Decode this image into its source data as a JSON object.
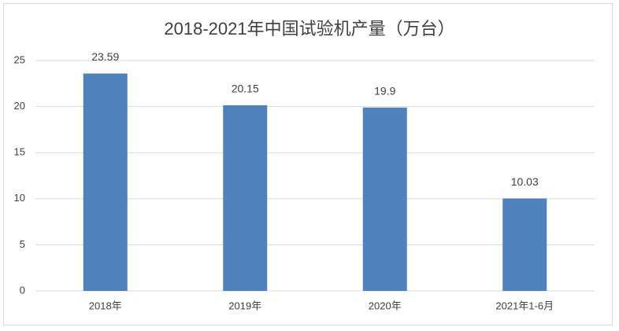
{
  "chart_data": {
    "type": "bar",
    "title": "2018-2021年中国试验机产量（万台）",
    "categories": [
      "2018年",
      "2019年",
      "2020年",
      "2021年1-6月"
    ],
    "values": [
      23.59,
      20.15,
      19.9,
      10.03
    ],
    "color": "#4f81bd",
    "ylim": [
      0,
      25
    ],
    "yticks": [
      0,
      5,
      10,
      15,
      20,
      25
    ],
    "grid": true
  }
}
